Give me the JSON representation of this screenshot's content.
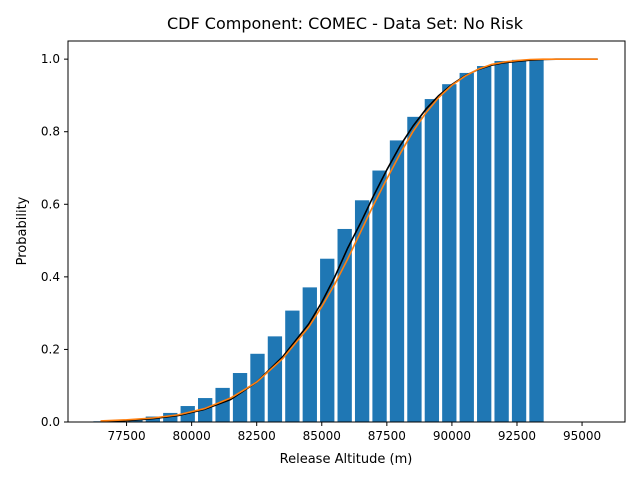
{
  "chart_data": {
    "type": "bar",
    "title": "CDF Component: COMEC - Data Set: No Risk",
    "xlabel": "Release Altitude (m)",
    "ylabel": "Probability",
    "xlim": [
      75250,
      96650
    ],
    "ylim": [
      0,
      1.05
    ],
    "x_ticks": [
      77500,
      80000,
      82500,
      85000,
      87500,
      90000,
      92500,
      95000
    ],
    "y_ticks": [
      0.0,
      0.2,
      0.4,
      0.6,
      0.8,
      1.0
    ],
    "grid": false,
    "legend": "none",
    "bar_color": "#1f77b4",
    "bar_width": 550,
    "bars": {
      "x": [
        76500,
        77170,
        77840,
        78510,
        79180,
        79850,
        80520,
        81190,
        81860,
        82530,
        83200,
        83870,
        84540,
        85210,
        85880,
        86550,
        87220,
        87890,
        88560,
        89230,
        89900,
        90570,
        91240,
        91910,
        92580,
        93250
      ],
      "values": [
        0.002,
        0.004,
        0.008,
        0.015,
        0.025,
        0.044,
        0.066,
        0.094,
        0.135,
        0.188,
        0.236,
        0.307,
        0.371,
        0.45,
        0.532,
        0.611,
        0.693,
        0.776,
        0.841,
        0.89,
        0.931,
        0.962,
        0.981,
        0.995,
        0.998,
        1.0
      ]
    },
    "series": [
      {
        "color": "#000000",
        "x": [
          76500,
          77500,
          78500,
          79500,
          80500,
          81500,
          82500,
          83500,
          84500,
          85000,
          85500,
          86000,
          86500,
          87000,
          87500,
          88000,
          88500,
          89000,
          89500,
          90000,
          90500,
          91000,
          91500,
          92000,
          92500,
          93000,
          93500,
          94000,
          94500,
          95000,
          95600
        ],
        "values": [
          0.001,
          0.004,
          0.009,
          0.018,
          0.035,
          0.062,
          0.11,
          0.18,
          0.27,
          0.33,
          0.4,
          0.48,
          0.55,
          0.625,
          0.695,
          0.76,
          0.815,
          0.862,
          0.9,
          0.93,
          0.954,
          0.971,
          0.983,
          0.99,
          0.994,
          0.997,
          0.999,
          1.0,
          1.0,
          1.0,
          1.0
        ]
      },
      {
        "color": "#ff7f0e",
        "x": [
          76500,
          77500,
          78500,
          79500,
          80500,
          81500,
          82500,
          83500,
          84500,
          85000,
          85500,
          86000,
          86500,
          87000,
          87500,
          88000,
          88500,
          89000,
          89500,
          90000,
          90500,
          91000,
          91500,
          92000,
          92500,
          93000,
          93500,
          94000,
          94500,
          95000,
          95600
        ],
        "values": [
          0.003,
          0.006,
          0.011,
          0.02,
          0.037,
          0.066,
          0.11,
          0.175,
          0.262,
          0.318,
          0.38,
          0.45,
          0.525,
          0.6,
          0.67,
          0.738,
          0.8,
          0.852,
          0.895,
          0.928,
          0.953,
          0.972,
          0.985,
          0.992,
          0.996,
          0.999,
          1.0,
          1.0,
          1.0,
          1.0,
          1.0
        ]
      }
    ]
  }
}
